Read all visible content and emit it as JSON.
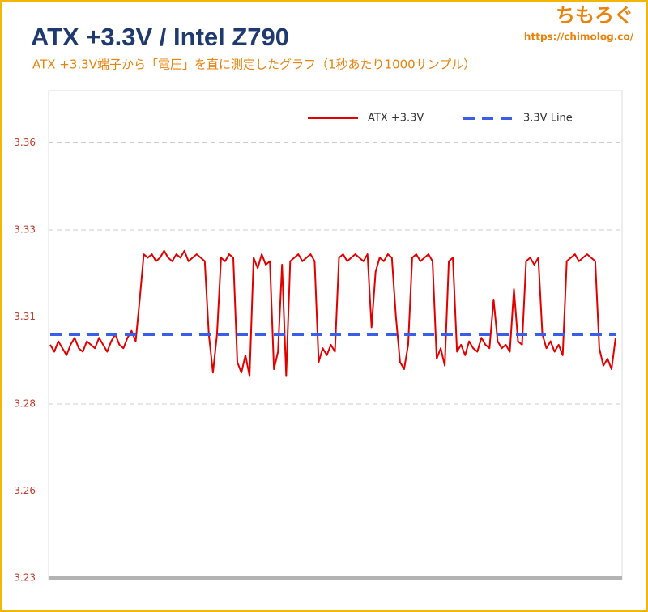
{
  "brand": {
    "name": "ちもろぐ",
    "url": "https://chimolog.co/"
  },
  "chart_data": {
    "type": "line",
    "title": "ATX +3.3V / Intel Z790",
    "subtitle": "ATX +3.3V端子から「電圧」を直に測定したグラフ（1秒あたり1000サンプル）",
    "xlim": [
      0,
      139
    ],
    "ylim": [
      3.23,
      3.37
    ],
    "yticks": [
      {
        "value": 3.23,
        "label": "3.23"
      },
      {
        "value": 3.255,
        "label": "3.26"
      },
      {
        "value": 3.28,
        "label": "3.28"
      },
      {
        "value": 3.305,
        "label": "3.31"
      },
      {
        "value": 3.33,
        "label": "3.33"
      },
      {
        "value": 3.355,
        "label": "3.36"
      }
    ],
    "grid": true,
    "legend": "top-right",
    "series": [
      {
        "name": "ATX +3.3V",
        "color": "#e00000",
        "style": "solid",
        "values": [
          3.297,
          3.295,
          3.298,
          3.296,
          3.294,
          3.297,
          3.299,
          3.296,
          3.295,
          3.298,
          3.297,
          3.296,
          3.299,
          3.297,
          3.295,
          3.298,
          3.3,
          3.297,
          3.296,
          3.299,
          3.301,
          3.298,
          3.31,
          3.323,
          3.322,
          3.323,
          3.321,
          3.322,
          3.324,
          3.322,
          3.321,
          3.323,
          3.322,
          3.324,
          3.321,
          3.322,
          3.323,
          3.322,
          3.321,
          3.3,
          3.289,
          3.3,
          3.322,
          3.321,
          3.323,
          3.322,
          3.292,
          3.289,
          3.294,
          3.288,
          3.322,
          3.319,
          3.323,
          3.32,
          3.321,
          3.29,
          3.295,
          3.32,
          3.288,
          3.321,
          3.322,
          3.323,
          3.321,
          3.322,
          3.323,
          3.321,
          3.292,
          3.296,
          3.294,
          3.297,
          3.295,
          3.322,
          3.323,
          3.321,
          3.322,
          3.323,
          3.322,
          3.321,
          3.323,
          3.302,
          3.318,
          3.322,
          3.321,
          3.323,
          3.322,
          3.305,
          3.292,
          3.29,
          3.297,
          3.322,
          3.323,
          3.321,
          3.322,
          3.323,
          3.321,
          3.293,
          3.296,
          3.291,
          3.321,
          3.322,
          3.295,
          3.297,
          3.294,
          3.298,
          3.296,
          3.295,
          3.299,
          3.297,
          3.296,
          3.31,
          3.298,
          3.296,
          3.297,
          3.295,
          3.313,
          3.298,
          3.297,
          3.321,
          3.322,
          3.32,
          3.322,
          3.3,
          3.296,
          3.298,
          3.295,
          3.297,
          3.294,
          3.321,
          3.322,
          3.323,
          3.321,
          3.322,
          3.323,
          3.322,
          3.321,
          3.296,
          3.291,
          3.293,
          3.29,
          3.299
        ]
      },
      {
        "name": "3.3V Line",
        "color": "#3b5ee8",
        "style": "dashed",
        "x": [
          0,
          139
        ],
        "values": [
          3.3,
          3.3
        ]
      }
    ]
  }
}
